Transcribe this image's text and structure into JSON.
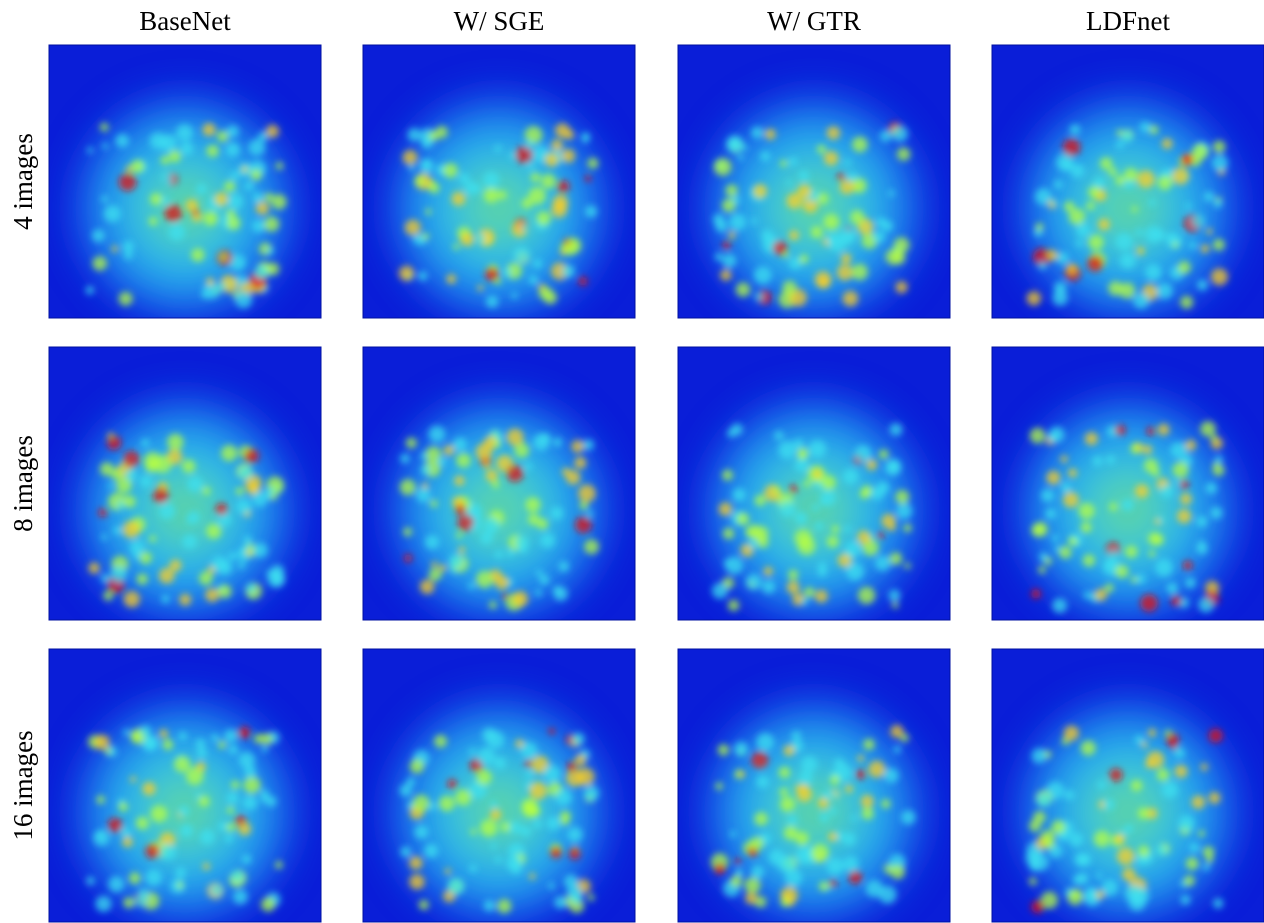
{
  "columns": [
    "BaseNet",
    "W/ SGE",
    "W/ GTR",
    "LDFnet"
  ],
  "rows": [
    "4 images",
    "8 images",
    "16 images"
  ]
}
